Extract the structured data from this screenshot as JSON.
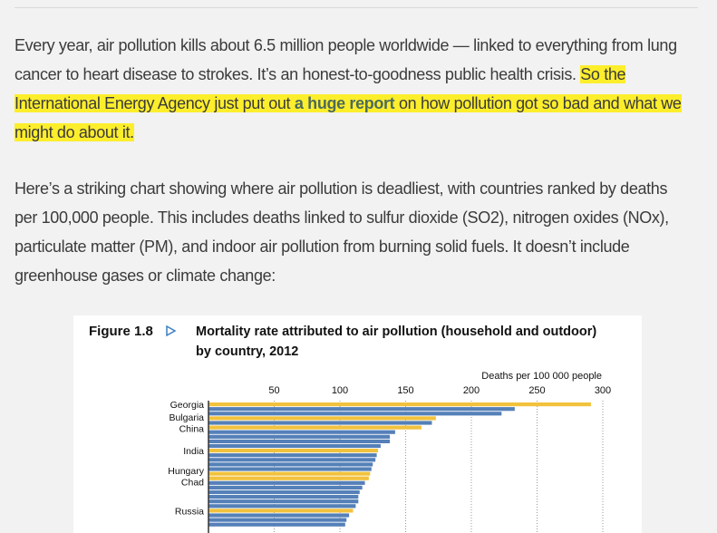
{
  "article": {
    "p1_before": "Every year, air pollution kills about 6.5 million people worldwide — linked to everything from lung cancer to heart disease to strokes. It’s an honest-to-goodness public health crisis. ",
    "p1_highlight_a": "So the International Energy Agency just put out ",
    "p1_link": "a huge report",
    "p1_highlight_b": " on how pollution got so bad and what we might do about it.",
    "p2": "Here’s a striking chart showing where air pollution is deadliest, with countries ranked by deaths per 100,000 people. This includes deaths linked to sulfur dioxide (SO2), nitrogen oxides (NOx), particulate matter (PM), and indoor air pollution from burning solid fuels. It doesn’t include greenhouse gases or climate change:"
  },
  "colors": {
    "background": "#f1f2f1",
    "highlight": "#fdee2c",
    "link": "#4e6b5b",
    "bar_blue": "#5580b8",
    "bar_yellow": "#f2c23d"
  },
  "chart_data": {
    "type": "bar",
    "orientation": "horizontal",
    "figure_label": "Figure 1.8",
    "title_line1": "Mortality rate attributed to air pollution (household and outdoor)",
    "title_line2": "by country, 2012",
    "xlabel": "Deaths per 100 000 people",
    "xlim": [
      0,
      300
    ],
    "xticks": [
      "50",
      "100",
      "150",
      "200",
      "250",
      "300"
    ],
    "grid": "vertical dotted",
    "categories": [
      "Georgia",
      "",
      "",
      "Bulgaria",
      "",
      "China",
      "",
      "",
      "",
      "",
      "India",
      "",
      "",
      "",
      "",
      "Hungary",
      "Chad",
      "",
      "",
      "",
      "",
      "",
      "",
      "Russia",
      "",
      "",
      ""
    ],
    "values": [
      291,
      233,
      223,
      173,
      170,
      162,
      142,
      138,
      138,
      131,
      129,
      128,
      127,
      125,
      124,
      123,
      122,
      119,
      117,
      115,
      114,
      114,
      112,
      110,
      107,
      105,
      104
    ],
    "highlighted": [
      true,
      false,
      false,
      true,
      false,
      true,
      false,
      false,
      false,
      false,
      true,
      false,
      false,
      false,
      false,
      true,
      true,
      false,
      false,
      false,
      false,
      false,
      false,
      true,
      false,
      false,
      false
    ]
  }
}
